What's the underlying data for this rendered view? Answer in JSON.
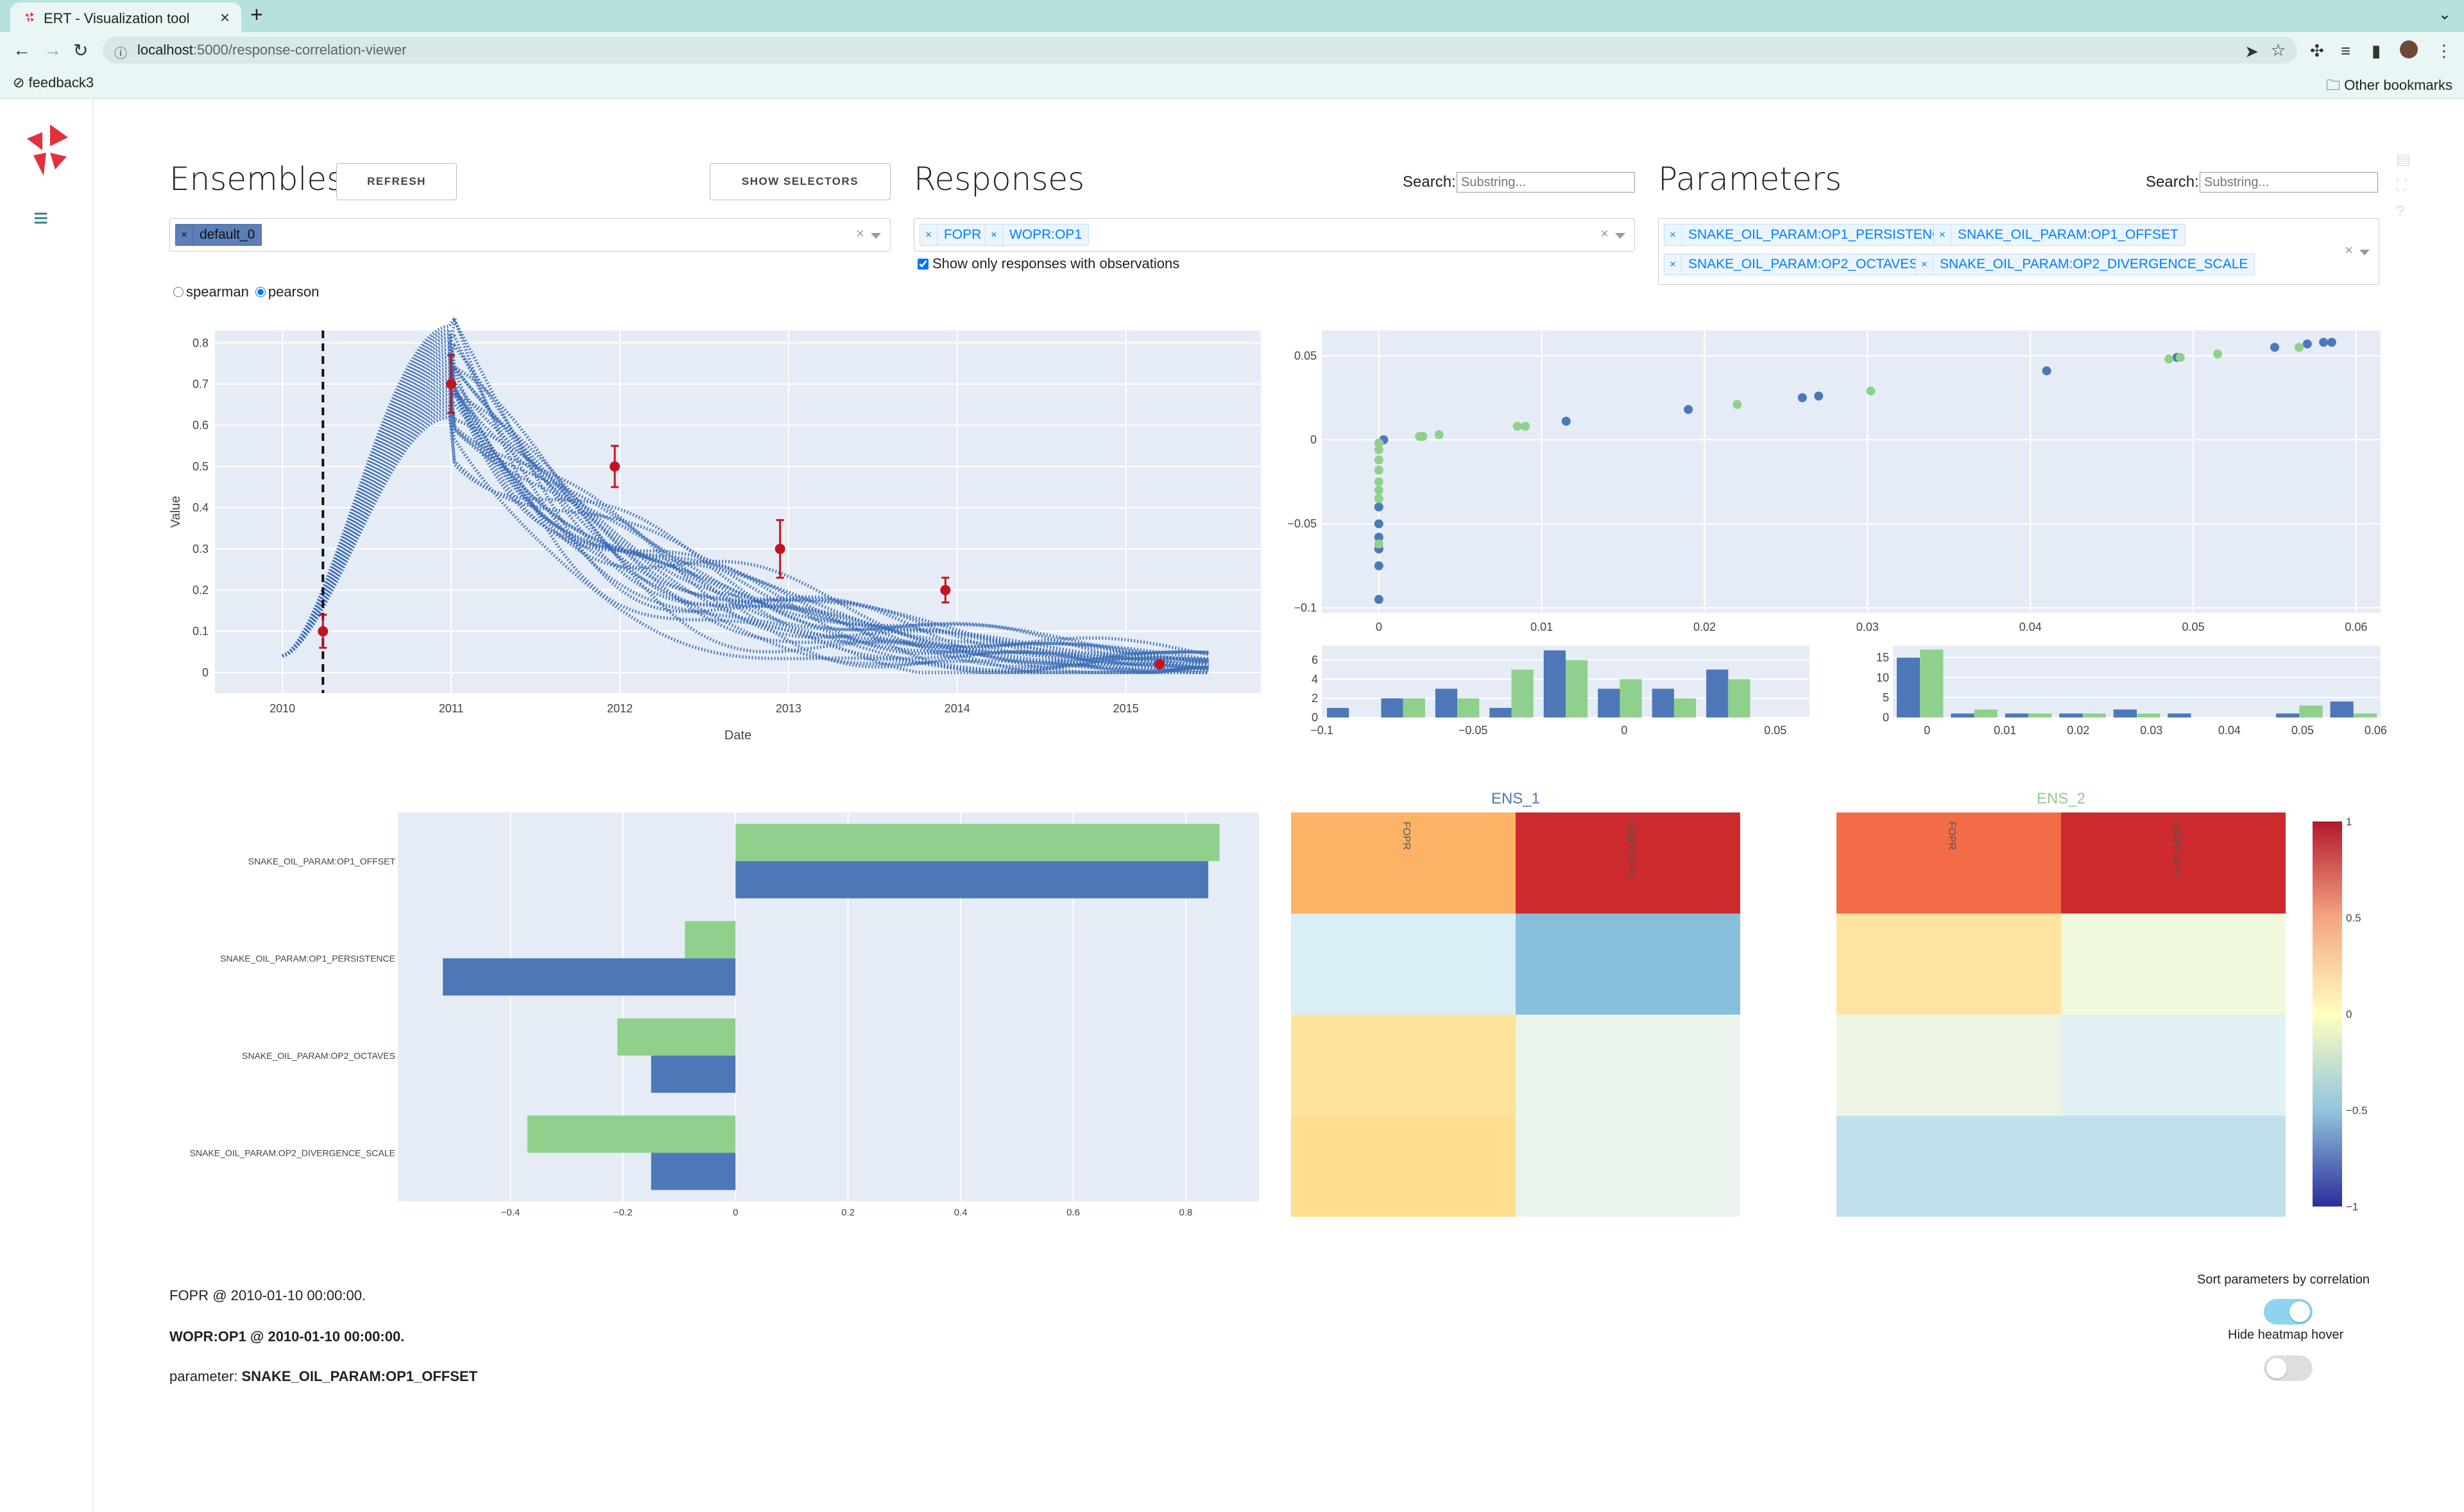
{
  "browser": {
    "tab_title": "ERT - Visualization tool",
    "new_tab_label": "+",
    "url_host": "localhost",
    "url_path": ":5000/response-correlation-viewer",
    "bookmark": "feedback3",
    "other_bookmarks": "Other bookmarks"
  },
  "colors": {
    "ens1": "#4c78b8",
    "ens2": "#8fd18c",
    "obs": "#c4141f",
    "plot_bg": "#e5ecf6",
    "accent": "#2a7f84"
  },
  "ensembles": {
    "title": "Ensembles",
    "refresh_label": "REFRESH",
    "show_selectors_label": "SHOW SELECTORS",
    "selected": [
      "default_0"
    ],
    "radio_spearman": "spearman",
    "radio_pearson": "pearson",
    "selected_method": "pearson"
  },
  "responses": {
    "title": "Responses",
    "search_label": "Search:",
    "search_placeholder": "Substring...",
    "selected": [
      "FOPR",
      "WOPR:OP1"
    ],
    "checkbox_label": "Show only responses with observations",
    "checkbox_checked": true
  },
  "parameters": {
    "title": "Parameters",
    "search_label": "Search:",
    "search_placeholder": "Substring...",
    "selected": [
      "SNAKE_OIL_PARAM:OP1_PERSISTENCE",
      "SNAKE_OIL_PARAM:OP1_OFFSET",
      "SNAKE_OIL_PARAM:OP2_OCTAVES",
      "SNAKE_OIL_PARAM:OP2_DIVERGENCE_SCALE"
    ]
  },
  "chart_data": [
    {
      "type": "line",
      "xlabel": "Date",
      "ylabel": "Value",
      "x_ticks": [
        "2010",
        "2011",
        "2012",
        "2013",
        "2014",
        "2015"
      ],
      "y_ticks": [
        "0",
        "0.1",
        "0.2",
        "0.3",
        "0.4",
        "0.5",
        "0.6",
        "0.7",
        "0.8"
      ],
      "x_range": [
        2009.6,
        2015.8
      ],
      "y_range": [
        -0.05,
        0.83
      ],
      "selected_date_x": 2010.24,
      "observations": [
        {
          "x": 2010.24,
          "y": 0.1,
          "err": 0.04
        },
        {
          "x": 2011.0,
          "y": 0.7,
          "err": 0.07
        },
        {
          "x": 2011.97,
          "y": 0.5,
          "err": 0.05
        },
        {
          "x": 2012.95,
          "y": 0.3,
          "err": 0.07
        },
        {
          "x": 2013.93,
          "y": 0.2,
          "err": 0.03
        },
        {
          "x": 2015.2,
          "y": 0.02,
          "err": 0.0
        }
      ]
    },
    {
      "type": "scatter",
      "x_ticks": [
        "0",
        "0.01",
        "0.02",
        "0.03",
        "0.04",
        "0.05",
        "0.06"
      ],
      "y_ticks": [
        "0.05",
        "0",
        "−0.05",
        "−0.1"
      ],
      "x_range": [
        -0.0035,
        0.0615
      ],
      "y_range": [
        -0.103,
        0.065
      ],
      "series": [
        {
          "points": [
            [
              0,
              -0.095
            ],
            [
              0,
              -0.075
            ],
            [
              0,
              -0.065
            ],
            [
              0,
              -0.058
            ],
            [
              0,
              -0.05
            ],
            [
              0,
              -0.04
            ],
            [
              0.0003,
              0
            ],
            [
              0.0115,
              0.011
            ],
            [
              0.019,
              0.018
            ],
            [
              0.026,
              0.025
            ],
            [
              0.027,
              0.026
            ],
            [
              0.041,
              0.041
            ],
            [
              0.049,
              0.049
            ],
            [
              0.055,
              0.055
            ],
            [
              0.057,
              0.057
            ],
            [
              0.058,
              0.058
            ],
            [
              0.0585,
              0.058
            ]
          ]
        },
        {
          "points": [
            [
              0,
              -0.062
            ],
            [
              0,
              -0.035
            ],
            [
              0,
              -0.03
            ],
            [
              0,
              -0.025
            ],
            [
              0,
              -0.018
            ],
            [
              0,
              -0.012
            ],
            [
              0,
              -0.006
            ],
            [
              0,
              -0.002
            ],
            [
              0.0025,
              0.002
            ],
            [
              0.0027,
              0.002
            ],
            [
              0.0037,
              0.003
            ],
            [
              0.0085,
              0.008
            ],
            [
              0.009,
              0.008
            ],
            [
              0.022,
              0.021
            ],
            [
              0.0302,
              0.029
            ],
            [
              0.0485,
              0.048
            ],
            [
              0.0492,
              0.049
            ],
            [
              0.0515,
              0.051
            ],
            [
              0.0565,
              0.055
            ]
          ]
        }
      ]
    },
    {
      "type": "bar",
      "x_ticks": [
        "−0.1",
        "−0.05",
        "0",
        "0.05"
      ],
      "y_ticks": [
        "0",
        "2",
        "4",
        "6"
      ],
      "y_range": [
        0,
        7.5
      ],
      "categories": [
        -0.1,
        -0.08,
        -0.06,
        -0.04,
        -0.02,
        0.0,
        0.02,
        0.04,
        0.06
      ],
      "series": [
        {
          "values": [
            1,
            2,
            3,
            1,
            7,
            3,
            3,
            5,
            0
          ]
        },
        {
          "values": [
            0,
            2,
            2,
            5,
            6,
            4,
            2,
            4,
            0
          ]
        }
      ]
    },
    {
      "type": "bar",
      "x_ticks": [
        "0",
        "0.01",
        "0.02",
        "0.03",
        "0.04",
        "0.05",
        "0.06"
      ],
      "y_ticks": [
        "0",
        "5",
        "10",
        "15"
      ],
      "y_range": [
        0,
        18
      ],
      "series": [
        {
          "values": [
            15,
            1,
            1,
            1,
            2,
            1,
            0,
            1,
            4
          ]
        },
        {
          "values": [
            17,
            2,
            1,
            1,
            1,
            0,
            0,
            3,
            1
          ]
        }
      ]
    },
    {
      "type": "bar",
      "orientation": "horizontal",
      "x_ticks": [
        "−0.4",
        "−0.2",
        "0",
        "0.2",
        "0.4",
        "0.6",
        "0.8"
      ],
      "x_range": [
        -0.6,
        0.93
      ],
      "categories": [
        "SNAKE_OIL_PARAM:OP1_OFFSET",
        "SNAKE_OIL_PARAM:OP1_PERSISTENCE",
        "SNAKE_OIL_PARAM:OP2_OCTAVES",
        "SNAKE_OIL_PARAM:OP2_DIVERGENCE_SCALE"
      ],
      "series": [
        {
          "values": [
            0.84,
            -0.52,
            -0.15,
            -0.15
          ]
        },
        {
          "values": [
            0.86,
            -0.09,
            -0.21,
            -0.37
          ]
        }
      ]
    },
    {
      "type": "heatmap",
      "title": "ENS_1",
      "columns": [
        "FOPR",
        "WOPR:OP1"
      ],
      "cell_colors": [
        [
          "#fdb366",
          "#cd2a2d"
        ],
        [
          "#d9eef5",
          "#87bfdb"
        ],
        [
          "#fee39a",
          "#e9f5ec"
        ],
        [
          "#fede8f",
          "#e9f5ec"
        ]
      ]
    },
    {
      "type": "heatmap",
      "title": "ENS_2",
      "columns": [
        "FOPR",
        "WOPR:OP1"
      ],
      "cell_colors": [
        [
          "#f26c47",
          "#cd2a2d"
        ],
        [
          "#fee3a1",
          "#f1f9dd"
        ],
        [
          "#edf6e4",
          "#e0f0f4"
        ],
        [
          "#bfe0ec",
          "#bfe0ec"
        ]
      ],
      "colorbar_ticks": [
        "1",
        "0.5",
        "0",
        "−0.5",
        "−1"
      ]
    }
  ],
  "info": {
    "line1": "FOPR @ 2010-01-10 00:00:00.",
    "line2": "WOPR:OP1 @ 2010-01-10 00:00:00.",
    "line3_prefix": "parameter: ",
    "line3_value": "SNAKE_OIL_PARAM:OP1_OFFSET"
  },
  "options": {
    "sort_label": "Sort parameters by correlation",
    "sort_on": true,
    "hover_label": "Hide heatmap hover",
    "hover_on": false
  }
}
